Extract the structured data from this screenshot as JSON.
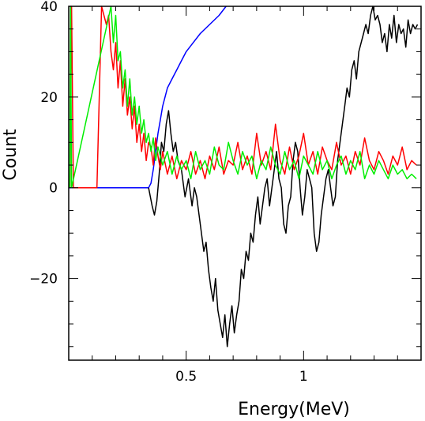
{
  "chart_data": {
    "type": "line",
    "title": "",
    "xlabel": "Energy(MeV)",
    "ylabel": "Count",
    "xlim": [
      0.0,
      1.5
    ],
    "ylim": [
      -38,
      40
    ],
    "grid": false,
    "legend": "none",
    "x_ticks": [
      {
        "value": 0.5,
        "label": "0.5"
      },
      {
        "value": 1.0,
        "label": "1"
      }
    ],
    "y_ticks": [
      {
        "value": 40,
        "label": "40"
      },
      {
        "value": 20,
        "label": "20"
      },
      {
        "value": 0,
        "label": "0"
      },
      {
        "value": -20,
        "label": "−20"
      }
    ],
    "series": [
      {
        "color": "#0000ff",
        "x": [
          0.0,
          0.1,
          0.2,
          0.3,
          0.34,
          0.35,
          0.36,
          0.37,
          0.38,
          0.39,
          0.4,
          0.41,
          0.42,
          0.44,
          0.46,
          0.48,
          0.5,
          0.53,
          0.56,
          0.6,
          0.64,
          0.67
        ],
        "y": [
          0,
          0,
          0,
          0,
          0,
          1,
          4,
          8,
          12,
          15,
          18,
          20,
          22,
          24,
          26,
          28,
          30,
          32,
          34,
          36,
          38,
          40
        ]
      },
      {
        "color": "#000000",
        "x": [
          0.34,
          0.355,
          0.365,
          0.375,
          0.385,
          0.395,
          0.405,
          0.415,
          0.425,
          0.435,
          0.445,
          0.455,
          0.465,
          0.48,
          0.495,
          0.51,
          0.525,
          0.535,
          0.545,
          0.555,
          0.565,
          0.575,
          0.585,
          0.595,
          0.605,
          0.615,
          0.625,
          0.635,
          0.645,
          0.655,
          0.665,
          0.675,
          0.685,
          0.695,
          0.705,
          0.715,
          0.725,
          0.735,
          0.745,
          0.755,
          0.765,
          0.775,
          0.785,
          0.795,
          0.805,
          0.815,
          0.825,
          0.835,
          0.845,
          0.855,
          0.865,
          0.875,
          0.885,
          0.895,
          0.905,
          0.915,
          0.925,
          0.935,
          0.945,
          0.955,
          0.965,
          0.975,
          0.985,
          0.995,
          1.005,
          1.015,
          1.025,
          1.035,
          1.045,
          1.055,
          1.065,
          1.075,
          1.085,
          1.095,
          1.105,
          1.115,
          1.125,
          1.135,
          1.145,
          1.155,
          1.165,
          1.175,
          1.185,
          1.195,
          1.205,
          1.215,
          1.225,
          1.235,
          1.245,
          1.255,
          1.265,
          1.275,
          1.285,
          1.295,
          1.305,
          1.315,
          1.325,
          1.335,
          1.345,
          1.355,
          1.365,
          1.375,
          1.385,
          1.395,
          1.405,
          1.415,
          1.425,
          1.435,
          1.445,
          1.455,
          1.465,
          1.475,
          1.485
        ],
        "y": [
          0,
          -4,
          -6,
          -3,
          3,
          10,
          8,
          14,
          17,
          12,
          8,
          10,
          6,
          4,
          -2,
          2,
          -4,
          0,
          -2,
          -6,
          -10,
          -14,
          -12,
          -18,
          -22,
          -25,
          -20,
          -27,
          -30,
          -33,
          -28,
          -35,
          -30,
          -26,
          -32,
          -28,
          -25,
          -18,
          -20,
          -14,
          -16,
          -10,
          -12,
          -6,
          -2,
          -8,
          -4,
          0,
          2,
          -4,
          0,
          4,
          8,
          2,
          0,
          -8,
          -10,
          -4,
          -2,
          6,
          10,
          8,
          0,
          -6,
          -2,
          4,
          2,
          0,
          -10,
          -14,
          -12,
          -6,
          -2,
          2,
          4,
          0,
          -4,
          -2,
          6,
          10,
          14,
          18,
          22,
          20,
          26,
          28,
          24,
          30,
          32,
          34,
          36,
          34,
          38,
          40,
          37,
          38,
          36,
          32,
          34,
          30,
          36,
          33,
          38,
          32,
          36,
          34,
          35,
          31,
          37,
          34,
          36,
          35,
          36
        ]
      },
      {
        "color": "#ff0000",
        "x": [
          0.005,
          0.012,
          0.02,
          0.06,
          0.1,
          0.12,
          0.14,
          0.16,
          0.17,
          0.18,
          0.19,
          0.2,
          0.21,
          0.22,
          0.23,
          0.24,
          0.25,
          0.26,
          0.27,
          0.28,
          0.29,
          0.3,
          0.31,
          0.32,
          0.33,
          0.34,
          0.35,
          0.36,
          0.37,
          0.38,
          0.39,
          0.4,
          0.42,
          0.44,
          0.46,
          0.48,
          0.5,
          0.52,
          0.54,
          0.56,
          0.58,
          0.6,
          0.62,
          0.64,
          0.66,
          0.68,
          0.7,
          0.72,
          0.74,
          0.76,
          0.78,
          0.8,
          0.82,
          0.84,
          0.86,
          0.88,
          0.9,
          0.92,
          0.94,
          0.96,
          0.98,
          1.0,
          1.02,
          1.04,
          1.06,
          1.08,
          1.1,
          1.12,
          1.14,
          1.16,
          1.18,
          1.2,
          1.22,
          1.24,
          1.26,
          1.28,
          1.3,
          1.32,
          1.34,
          1.36,
          1.38,
          1.4,
          1.42,
          1.44,
          1.46,
          1.48
        ],
        "y": [
          0,
          40,
          0,
          0,
          0,
          0,
          40,
          36,
          38,
          30,
          26,
          32,
          22,
          28,
          18,
          24,
          16,
          20,
          13,
          18,
          10,
          14,
          8,
          12,
          6,
          10,
          9,
          5,
          11,
          7,
          4,
          8,
          3,
          7,
          2,
          6,
          4,
          8,
          3,
          6,
          2,
          7,
          4,
          9,
          3,
          6,
          5,
          10,
          4,
          7,
          3,
          12,
          5,
          8,
          4,
          14,
          6,
          3,
          9,
          4,
          7,
          12,
          5,
          8,
          3,
          9,
          6,
          4,
          10,
          5,
          7,
          3,
          8,
          5,
          11,
          6,
          4,
          8,
          6,
          3,
          7,
          5,
          9,
          4,
          6,
          5
        ]
      },
      {
        "color": "#00ee00",
        "x": [
          0.005,
          0.008,
          0.012,
          0.18,
          0.19,
          0.2,
          0.21,
          0.22,
          0.23,
          0.24,
          0.25,
          0.26,
          0.27,
          0.28,
          0.29,
          0.3,
          0.31,
          0.32,
          0.33,
          0.34,
          0.35,
          0.36,
          0.37,
          0.38,
          0.4,
          0.42,
          0.44,
          0.46,
          0.48,
          0.5,
          0.52,
          0.54,
          0.56,
          0.58,
          0.6,
          0.62,
          0.64,
          0.66,
          0.68,
          0.7,
          0.72,
          0.74,
          0.76,
          0.78,
          0.8,
          0.82,
          0.84,
          0.86,
          0.88,
          0.9,
          0.92,
          0.94,
          0.96,
          0.98,
          1.0,
          1.02,
          1.04,
          1.06,
          1.08,
          1.1,
          1.12,
          1.14,
          1.16,
          1.18,
          1.2,
          1.22,
          1.24,
          1.26,
          1.28,
          1.3,
          1.32,
          1.34,
          1.36,
          1.38,
          1.4,
          1.42,
          1.44,
          1.46,
          1.48
        ],
        "y": [
          0,
          40,
          0,
          40,
          32,
          38,
          28,
          30,
          22,
          26,
          18,
          24,
          16,
          20,
          14,
          18,
          12,
          15,
          10,
          12,
          8,
          11,
          6,
          9,
          5,
          8,
          3,
          7,
          4,
          6,
          2,
          8,
          4,
          6,
          3,
          9,
          5,
          4,
          10,
          6,
          3,
          8,
          5,
          7,
          2,
          6,
          4,
          9,
          5,
          3,
          8,
          4,
          6,
          2,
          7,
          5,
          3,
          8,
          4,
          6,
          2,
          5,
          7,
          3,
          6,
          4,
          8,
          2,
          5,
          3,
          6,
          4,
          2,
          5,
          3,
          4,
          2,
          3,
          2
        ]
      }
    ]
  }
}
